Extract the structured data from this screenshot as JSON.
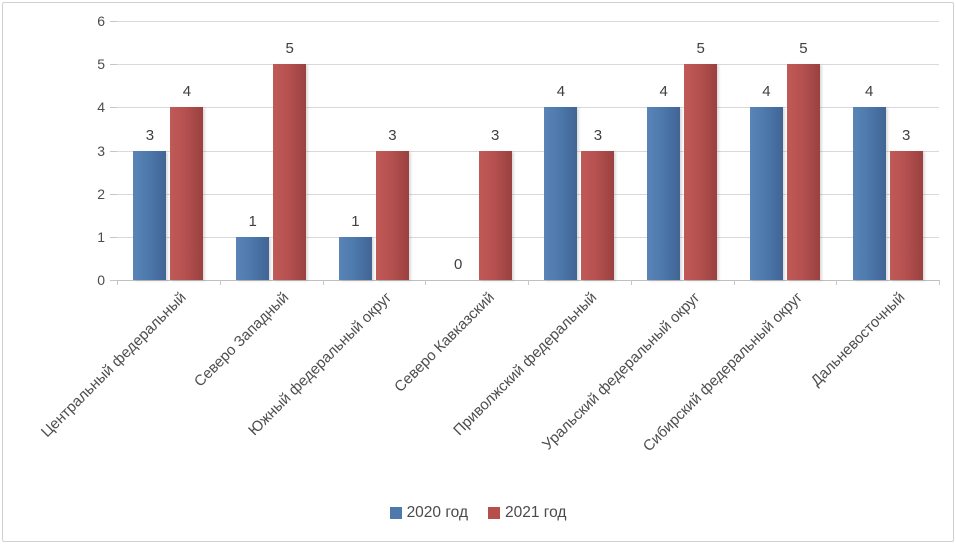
{
  "chart_data": {
    "type": "bar",
    "title": "",
    "categories": [
      "Центральный федеральный",
      "Северо Западный",
      "Южный федеральный округ",
      "Северо Кавказский",
      "Приволжский федеральный",
      "Уральский федеральный округ",
      "Сибирский федеральный округ",
      "Дальневосточный"
    ],
    "series": [
      {
        "name": "2020 год",
        "color": "#4d79ad",
        "values": [
          3,
          1,
          1,
          0,
          4,
          4,
          4,
          4
        ]
      },
      {
        "name": "2021 год",
        "color": "#b74e4b",
        "values": [
          4,
          5,
          3,
          3,
          3,
          5,
          5,
          3
        ]
      }
    ],
    "ylim": [
      0,
      6
    ],
    "yticks": [
      0,
      1,
      2,
      3,
      4,
      5,
      6
    ],
    "grid": true,
    "legend_position": "bottom",
    "gridline_color": "#d9d9d9"
  }
}
